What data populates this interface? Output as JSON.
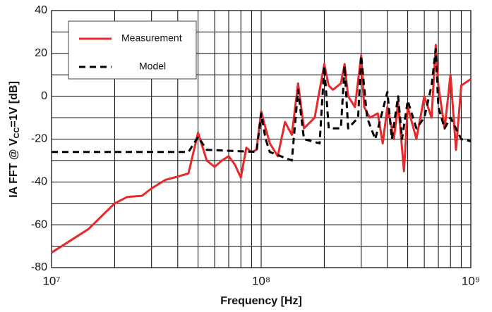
{
  "chart_data": {
    "type": "line",
    "xlabel": "Frequency [Hz]",
    "ylabel": [
      "IA FFT @ V",
      "CC",
      "=1V [dB]"
    ],
    "xscale": "log",
    "xlim": [
      10000000,
      1000000000
    ],
    "ylim": [
      -80,
      40
    ],
    "xticks": [
      {
        "value": 10000000,
        "label": "10⁷"
      },
      {
        "value": 100000000,
        "label": "10⁸"
      },
      {
        "value": 1000000000,
        "label": "10⁹"
      }
    ],
    "xminor": [
      20000000,
      30000000,
      40000000,
      50000000,
      60000000,
      70000000,
      80000000,
      90000000,
      200000000,
      300000000,
      400000000,
      500000000,
      600000000,
      700000000,
      800000000,
      900000000
    ],
    "yticks": [
      -80,
      -60,
      -40,
      -20,
      0,
      20,
      40
    ],
    "yminor": [
      -70,
      -50,
      -30,
      -10,
      10,
      30
    ],
    "grid": true,
    "legend": "upper left",
    "series": [
      {
        "name": "Measurement",
        "color": "#e8292b",
        "dash": "solid",
        "x": [
          10000000,
          15000000,
          20000000,
          23000000,
          27000000,
          30000000,
          35000000,
          40000000,
          45000000,
          50000000,
          55000000,
          60000000,
          65000000,
          70000000,
          75000000,
          80000000,
          85000000,
          90000000,
          95000000,
          100000000,
          105000000,
          110000000,
          120000000,
          130000000,
          140000000,
          150000000,
          160000000,
          180000000,
          200000000,
          210000000,
          220000000,
          240000000,
          250000000,
          260000000,
          280000000,
          300000000,
          310000000,
          330000000,
          360000000,
          380000000,
          400000000,
          430000000,
          450000000,
          480000000,
          500000000,
          550000000,
          600000000,
          650000000,
          680000000,
          700000000,
          750000000,
          800000000,
          850000000,
          900000000,
          1000000000
        ],
        "values": [
          -73,
          -62,
          -50,
          -47,
          -46.5,
          -43,
          -39,
          -37.5,
          -36,
          -17,
          -30,
          -33,
          -30,
          -28,
          -32,
          -38,
          -24,
          -26,
          -25,
          -7,
          -15,
          -22,
          -28,
          -12,
          -18,
          6,
          -15,
          -10,
          15,
          5,
          3,
          6,
          15,
          0,
          -5,
          19,
          -5,
          -10,
          -8,
          -22,
          -5,
          -20,
          -3,
          -35,
          -5,
          -20,
          0,
          -10,
          24,
          5,
          -15,
          10,
          -25,
          5,
          8
        ]
      },
      {
        "name": "Model",
        "color": "#000000",
        "dash": "dashed",
        "x": [
          10000000,
          45000000,
          50000000,
          55000000,
          95000000,
          100000000,
          105000000,
          110000000,
          140000000,
          150000000,
          160000000,
          190000000,
          200000000,
          210000000,
          240000000,
          250000000,
          260000000,
          290000000,
          300000000,
          320000000,
          350000000,
          400000000,
          420000000,
          450000000,
          470000000,
          500000000,
          550000000,
          600000000,
          650000000,
          680000000,
          700000000,
          750000000,
          800000000,
          900000000,
          1000000000
        ],
        "values": [
          -26,
          -26,
          -19,
          -25,
          -26,
          -8,
          -20,
          -26,
          -30,
          3,
          -20,
          -22,
          14,
          -15,
          -15,
          14,
          -15,
          -10,
          19,
          -10,
          -20,
          2,
          -20,
          0,
          -20,
          -2,
          -15,
          -10,
          5,
          22,
          -5,
          -15,
          -10,
          -20,
          -21
        ]
      }
    ]
  }
}
